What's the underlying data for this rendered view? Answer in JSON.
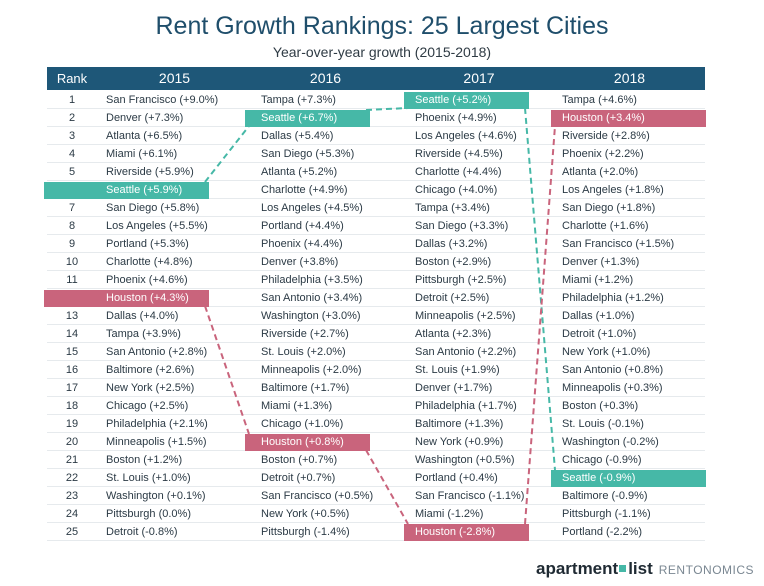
{
  "header": {
    "title": "Rent Growth Rankings: 25 Largest Cities",
    "subtitle": "Year-over-year growth (2015-2018)"
  },
  "table": {
    "rank_label": "Rank",
    "years": [
      "2015",
      "2016",
      "2017",
      "2018"
    ]
  },
  "chart_data": {
    "type": "table",
    "title": "Rent Growth Rankings: 25 Largest Cities",
    "subtitle": "Year-over-year growth (2015-2018)",
    "columns": [
      "Rank",
      "2015",
      "2016",
      "2017",
      "2018"
    ],
    "ranks": [
      1,
      2,
      3,
      4,
      5,
      6,
      7,
      8,
      9,
      10,
      11,
      12,
      13,
      14,
      15,
      16,
      17,
      18,
      19,
      20,
      21,
      22,
      23,
      24,
      25
    ],
    "rankings": {
      "2015": [
        "San Francisco (+9.0%)",
        "Denver (+7.3%)",
        "Atlanta (+6.5%)",
        "Miami (+6.1%)",
        "Riverside (+5.9%)",
        "Seattle (+5.9%)",
        "San Diego (+5.8%)",
        "Los Angeles (+5.5%)",
        "Portland (+5.3%)",
        "Charlotte (+4.8%)",
        "Phoenix (+4.6%)",
        "Houston (+4.3%)",
        "Dallas (+4.0%)",
        "Tampa (+3.9%)",
        "San Antonio (+2.8%)",
        "Baltimore (+2.6%)",
        "New York (+2.5%)",
        "Chicago (+2.5%)",
        "Philadelphia (+2.1%)",
        "Minneapolis (+1.5%)",
        "Boston (+1.2%)",
        "St. Louis (+1.0%)",
        "Washington (+0.1%)",
        "Pittsburgh (0.0%)",
        "Detroit (-0.8%)"
      ],
      "2016": [
        "Tampa (+7.3%)",
        "Seattle (+6.7%)",
        "Dallas (+5.4%)",
        "San Diego (+5.3%)",
        "Atlanta (+5.2%)",
        "Charlotte (+4.9%)",
        "Los Angeles (+4.5%)",
        "Portland (+4.4%)",
        "Phoenix (+4.4%)",
        "Denver (+3.8%)",
        "Philadelphia (+3.5%)",
        "San Antonio (+3.4%)",
        "Washington (+3.0%)",
        "Riverside (+2.7%)",
        "St. Louis (+2.0%)",
        "Minneapolis (+2.0%)",
        "Baltimore (+1.7%)",
        "Miami (+1.3%)",
        "Chicago (+1.0%)",
        "Houston (+0.8%)",
        "Boston (+0.7%)",
        "Detroit (+0.7%)",
        "San Francisco (+0.5%)",
        "New York (+0.5%)",
        "Pittsburgh (-1.4%)"
      ],
      "2017": [
        "Seattle (+5.2%)",
        "Phoenix (+4.9%)",
        "Los Angeles (+4.6%)",
        "Riverside (+4.5%)",
        "Charlotte (+4.4%)",
        "Chicago (+4.0%)",
        "Tampa (+3.4%)",
        "San Diego (+3.3%)",
        "Dallas (+3.2%)",
        "Boston (+2.9%)",
        "Pittsburgh (+2.5%)",
        "Detroit (+2.5%)",
        "Minneapolis (+2.5%)",
        "Atlanta (+2.3%)",
        "San Antonio (+2.2%)",
        "St. Louis (+1.9%)",
        "Denver (+1.7%)",
        "Philadelphia (+1.7%)",
        "Baltimore (+1.3%)",
        "New York (+0.9%)",
        "Washington (+0.5%)",
        "Portland (+0.4%)",
        "San Francisco (-1.1%)",
        "Miami (-1.2%)",
        "Houston (-2.8%)"
      ],
      "2018": [
        "Tampa (+4.6%)",
        "Houston (+3.4%)",
        "Riverside (+2.8%)",
        "Phoenix (+2.2%)",
        "Atlanta (+2.0%)",
        "Los Angeles (+1.8%)",
        "San Diego (+1.8%)",
        "Charlotte (+1.6%)",
        "San Francisco (+1.5%)",
        "Denver (+1.3%)",
        "Miami (+1.2%)",
        "Philadelphia (+1.2%)",
        "Dallas (+1.0%)",
        "Detroit (+1.0%)",
        "New York (+1.0%)",
        "San Antonio (+0.8%)",
        "Minneapolis (+0.3%)",
        "Boston (+0.3%)",
        "St. Louis (-0.1%)",
        "Washington (-0.2%)",
        "Chicago (-0.9%)",
        "Seattle (-0.9%)",
        "Baltimore (-0.9%)",
        "Pittsburgh (-1.1%)",
        "Portland (-2.2%)"
      ]
    },
    "highlights": [
      {
        "city": "Seattle",
        "color": "#46b8a7",
        "ranks": {
          "2015": 6,
          "2016": 2,
          "2017": 1,
          "2018": 22
        }
      },
      {
        "city": "Houston",
        "color": "#c9647c",
        "ranks": {
          "2015": 12,
          "2016": 20,
          "2017": 25,
          "2018": 2
        }
      }
    ]
  },
  "branding": {
    "name_part1": "apartment",
    "name_part2": "list",
    "tagline": "RENTONOMICS"
  },
  "colors": {
    "header_bg": "#1e5778",
    "title": "#1f4e6b",
    "seattle": "#46b8a7",
    "houston": "#c9647c"
  }
}
